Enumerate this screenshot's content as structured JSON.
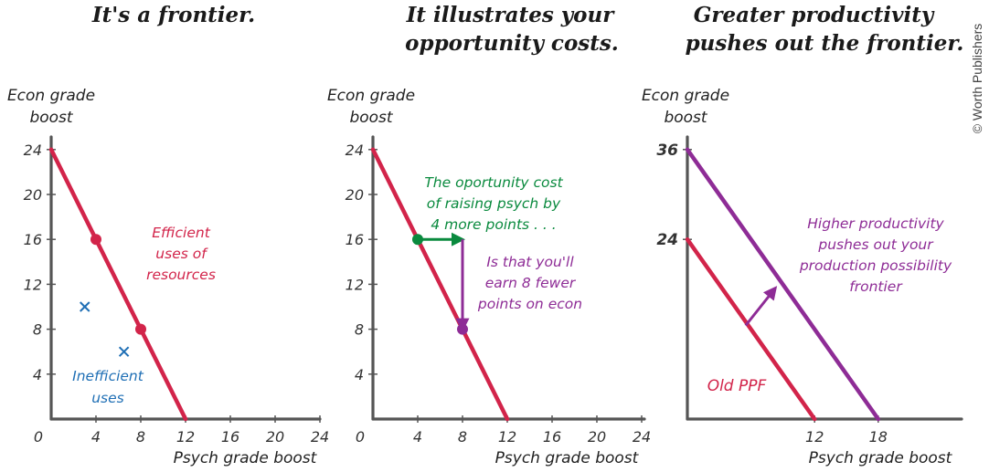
{
  "credit": "© Worth Publishers",
  "colors": {
    "red": "#d2244a",
    "blue": "#1f6fb5",
    "green": "#0a8a3e",
    "purple": "#8e2c96",
    "axis": "#555555"
  },
  "chart_data": [
    {
      "type": "line",
      "title_lines": [
        "It's a frontier."
      ],
      "ylabel_lines": [
        "Econ grade",
        "boost"
      ],
      "xlabel": "Psych grade boost",
      "xlim": [
        0,
        24
      ],
      "ylim": [
        0,
        24
      ],
      "xticks": [
        "0",
        "4",
        "8",
        "12",
        "16",
        "20",
        "24"
      ],
      "yticks": [
        "4",
        "8",
        "12",
        "16",
        "20",
        "24"
      ],
      "series": [
        {
          "x": [
            0,
            12
          ],
          "y": [
            24,
            0
          ],
          "color": "#d2244a"
        }
      ],
      "points": [
        {
          "x": 4,
          "y": 16,
          "marker": "dot",
          "color": "#d2244a"
        },
        {
          "x": 8,
          "y": 8,
          "marker": "dot",
          "color": "#d2244a"
        },
        {
          "x": 3,
          "y": 10,
          "marker": "x",
          "color": "#1f6fb5"
        },
        {
          "x": 6.5,
          "y": 6,
          "marker": "x",
          "color": "#1f6fb5"
        }
      ],
      "annotations": [
        {
          "lines": [
            "Efficient",
            "uses of",
            "resources"
          ],
          "color": "#d2244a"
        },
        {
          "lines": [
            "Inefficient",
            "uses"
          ],
          "color": "#1f6fb5"
        }
      ]
    },
    {
      "type": "line",
      "title_lines": [
        "It illustrates your",
        "opportunity costs."
      ],
      "ylabel_lines": [
        "Econ grade",
        "boost"
      ],
      "xlabel": "Psych grade boost",
      "xlim": [
        0,
        24
      ],
      "ylim": [
        0,
        24
      ],
      "xticks": [
        "0",
        "4",
        "8",
        "12",
        "16",
        "20",
        "24"
      ],
      "yticks": [
        "4",
        "8",
        "12",
        "16",
        "20",
        "24"
      ],
      "series": [
        {
          "x": [
            0,
            12
          ],
          "y": [
            24,
            0
          ],
          "color": "#d2244a"
        }
      ],
      "points": [
        {
          "x": 4,
          "y": 16,
          "marker": "dot",
          "color": "#0a8a3e"
        },
        {
          "x": 8,
          "y": 8,
          "marker": "dot",
          "color": "#8e2c96"
        }
      ],
      "arrows": [
        {
          "from": [
            4,
            16
          ],
          "to": [
            8,
            16
          ],
          "color": "#0a8a3e"
        },
        {
          "from": [
            8,
            16
          ],
          "to": [
            8,
            8
          ],
          "color": "#8e2c96"
        }
      ],
      "annotations": [
        {
          "lines": [
            "The oportunity cost",
            "of raising psych by",
            "4 more points . . ."
          ],
          "color": "#0a8a3e"
        },
        {
          "lines": [
            "Is that you'll",
            "earn 8 fewer",
            "points on econ"
          ],
          "color": "#8e2c96"
        }
      ]
    },
    {
      "type": "line",
      "title_lines": [
        "Greater productivity",
        "pushes out the frontier."
      ],
      "ylabel_lines": [
        "Econ grade",
        "boost"
      ],
      "xlabel": "Psych grade boost",
      "xlim": [
        0,
        24
      ],
      "ylim": [
        0,
        36
      ],
      "xticks": [
        "12",
        "18"
      ],
      "yticks": [
        "24",
        "36"
      ],
      "ytick_colors": [
        "#d2244a",
        "#8e2c96"
      ],
      "series": [
        {
          "x": [
            0,
            12
          ],
          "y": [
            24,
            0
          ],
          "color": "#d2244a",
          "label": "Old PPF"
        },
        {
          "x": [
            0,
            18
          ],
          "y": [
            36,
            0
          ],
          "color": "#8e2c96"
        }
      ],
      "arrows": [
        {
          "from": [
            5.5,
            12.5
          ],
          "to": [
            8.3,
            17.5
          ],
          "color": "#8e2c96"
        }
      ],
      "annotations": [
        {
          "lines": [
            "Higher productivity",
            "pushes out your",
            "production possibility",
            "frontier"
          ],
          "color": "#8e2c96"
        },
        {
          "lines": [
            "Old PPF"
          ],
          "color": "#d2244a"
        }
      ]
    }
  ]
}
